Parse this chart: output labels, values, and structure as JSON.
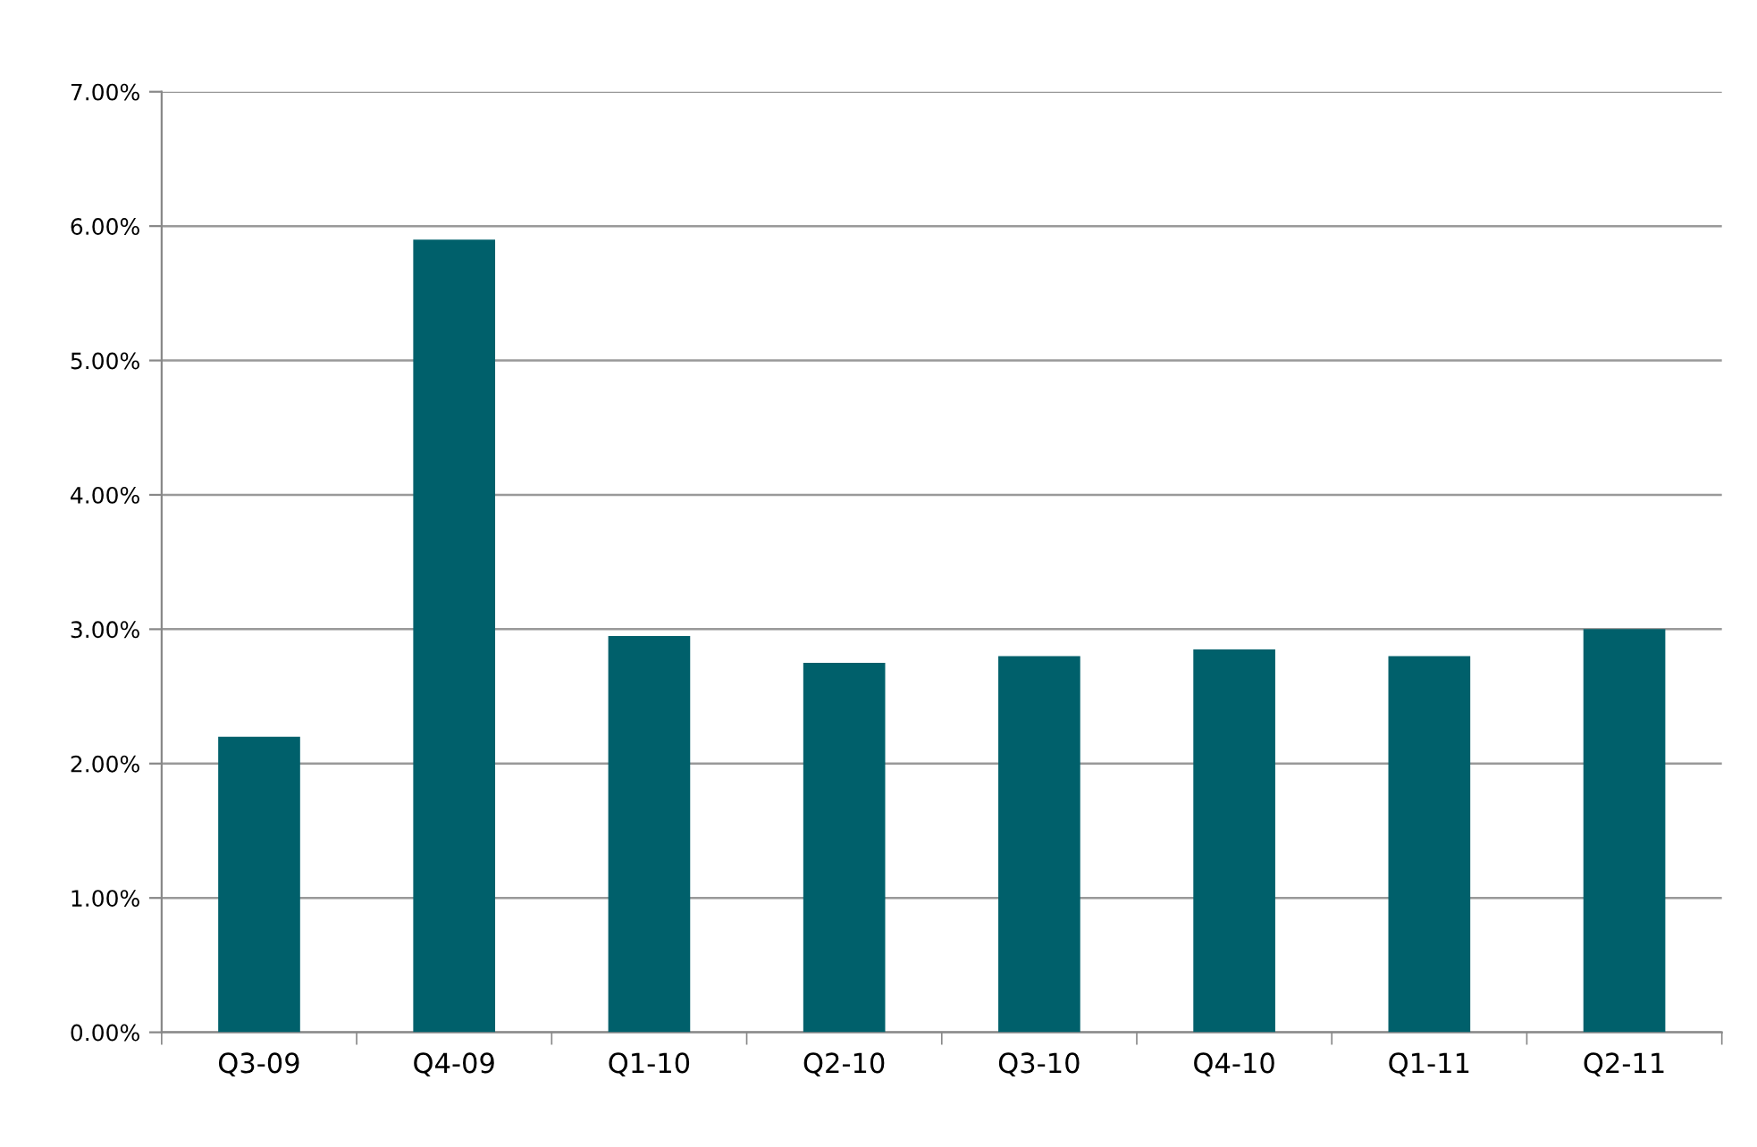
{
  "chart_data": {
    "type": "bar",
    "categories": [
      "Q3-09",
      "Q4-09",
      "Q1-10",
      "Q2-10",
      "Q3-10",
      "Q4-10",
      "Q1-11",
      "Q2-11"
    ],
    "values": [
      2.2,
      5.9,
      2.95,
      2.75,
      2.8,
      2.85,
      2.8,
      3.0
    ],
    "color": "#00606b",
    "ylim": [
      0,
      7
    ],
    "yticks": [
      {
        "value": 0,
        "label": "0.00%"
      },
      {
        "value": 1,
        "label": "1.00%"
      },
      {
        "value": 2,
        "label": "2.00%"
      },
      {
        "value": 3,
        "label": "3.00%"
      },
      {
        "value": 4,
        "label": "4.00%"
      },
      {
        "value": 5,
        "label": "5.00%"
      },
      {
        "value": 6,
        "label": "6.00%"
      },
      {
        "value": 7,
        "label": "7.00%"
      }
    ],
    "grid": "y"
  }
}
